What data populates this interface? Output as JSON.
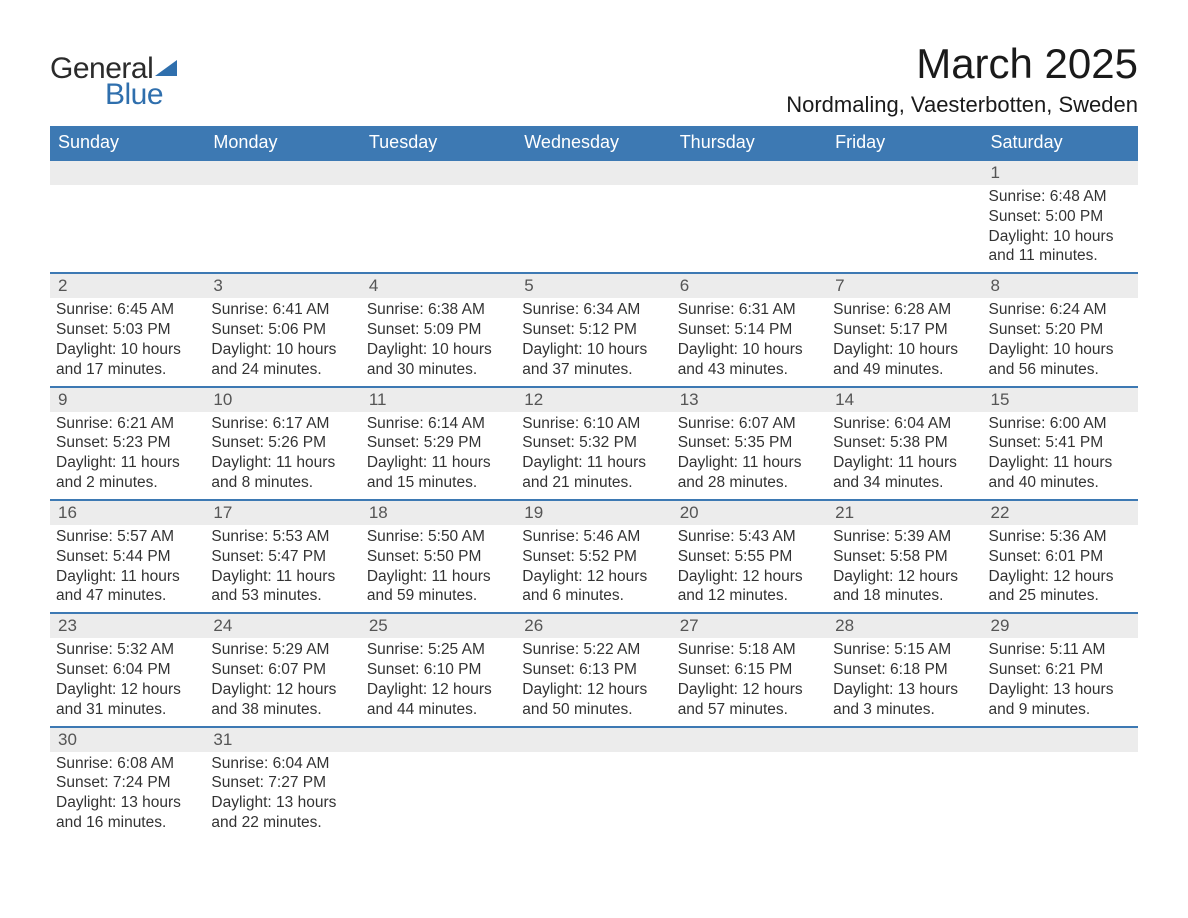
{
  "logo": {
    "word1": "General",
    "word2": "Blue"
  },
  "title": "March 2025",
  "location": "Nordmaling, Vaesterbotten, Sweden",
  "colors": {
    "header_bg": "#3d79b3",
    "header_text": "#ffffff",
    "daynum_bg": "#ececec",
    "row_border": "#3d79b3",
    "text": "#333333",
    "logo_dark": "#2b2b2b",
    "logo_blue": "#2f6fad",
    "page_bg": "#ffffff"
  },
  "day_names": [
    "Sunday",
    "Monday",
    "Tuesday",
    "Wednesday",
    "Thursday",
    "Friday",
    "Saturday"
  ],
  "weeks": [
    [
      null,
      null,
      null,
      null,
      null,
      null,
      {
        "n": "1",
        "sr": "Sunrise: 6:48 AM",
        "ss": "Sunset: 5:00 PM",
        "d1": "Daylight: 10 hours",
        "d2": "and 11 minutes."
      }
    ],
    [
      {
        "n": "2",
        "sr": "Sunrise: 6:45 AM",
        "ss": "Sunset: 5:03 PM",
        "d1": "Daylight: 10 hours",
        "d2": "and 17 minutes."
      },
      {
        "n": "3",
        "sr": "Sunrise: 6:41 AM",
        "ss": "Sunset: 5:06 PM",
        "d1": "Daylight: 10 hours",
        "d2": "and 24 minutes."
      },
      {
        "n": "4",
        "sr": "Sunrise: 6:38 AM",
        "ss": "Sunset: 5:09 PM",
        "d1": "Daylight: 10 hours",
        "d2": "and 30 minutes."
      },
      {
        "n": "5",
        "sr": "Sunrise: 6:34 AM",
        "ss": "Sunset: 5:12 PM",
        "d1": "Daylight: 10 hours",
        "d2": "and 37 minutes."
      },
      {
        "n": "6",
        "sr": "Sunrise: 6:31 AM",
        "ss": "Sunset: 5:14 PM",
        "d1": "Daylight: 10 hours",
        "d2": "and 43 minutes."
      },
      {
        "n": "7",
        "sr": "Sunrise: 6:28 AM",
        "ss": "Sunset: 5:17 PM",
        "d1": "Daylight: 10 hours",
        "d2": "and 49 minutes."
      },
      {
        "n": "8",
        "sr": "Sunrise: 6:24 AM",
        "ss": "Sunset: 5:20 PM",
        "d1": "Daylight: 10 hours",
        "d2": "and 56 minutes."
      }
    ],
    [
      {
        "n": "9",
        "sr": "Sunrise: 6:21 AM",
        "ss": "Sunset: 5:23 PM",
        "d1": "Daylight: 11 hours",
        "d2": "and 2 minutes."
      },
      {
        "n": "10",
        "sr": "Sunrise: 6:17 AM",
        "ss": "Sunset: 5:26 PM",
        "d1": "Daylight: 11 hours",
        "d2": "and 8 minutes."
      },
      {
        "n": "11",
        "sr": "Sunrise: 6:14 AM",
        "ss": "Sunset: 5:29 PM",
        "d1": "Daylight: 11 hours",
        "d2": "and 15 minutes."
      },
      {
        "n": "12",
        "sr": "Sunrise: 6:10 AM",
        "ss": "Sunset: 5:32 PM",
        "d1": "Daylight: 11 hours",
        "d2": "and 21 minutes."
      },
      {
        "n": "13",
        "sr": "Sunrise: 6:07 AM",
        "ss": "Sunset: 5:35 PM",
        "d1": "Daylight: 11 hours",
        "d2": "and 28 minutes."
      },
      {
        "n": "14",
        "sr": "Sunrise: 6:04 AM",
        "ss": "Sunset: 5:38 PM",
        "d1": "Daylight: 11 hours",
        "d2": "and 34 minutes."
      },
      {
        "n": "15",
        "sr": "Sunrise: 6:00 AM",
        "ss": "Sunset: 5:41 PM",
        "d1": "Daylight: 11 hours",
        "d2": "and 40 minutes."
      }
    ],
    [
      {
        "n": "16",
        "sr": "Sunrise: 5:57 AM",
        "ss": "Sunset: 5:44 PM",
        "d1": "Daylight: 11 hours",
        "d2": "and 47 minutes."
      },
      {
        "n": "17",
        "sr": "Sunrise: 5:53 AM",
        "ss": "Sunset: 5:47 PM",
        "d1": "Daylight: 11 hours",
        "d2": "and 53 minutes."
      },
      {
        "n": "18",
        "sr": "Sunrise: 5:50 AM",
        "ss": "Sunset: 5:50 PM",
        "d1": "Daylight: 11 hours",
        "d2": "and 59 minutes."
      },
      {
        "n": "19",
        "sr": "Sunrise: 5:46 AM",
        "ss": "Sunset: 5:52 PM",
        "d1": "Daylight: 12 hours",
        "d2": "and 6 minutes."
      },
      {
        "n": "20",
        "sr": "Sunrise: 5:43 AM",
        "ss": "Sunset: 5:55 PM",
        "d1": "Daylight: 12 hours",
        "d2": "and 12 minutes."
      },
      {
        "n": "21",
        "sr": "Sunrise: 5:39 AM",
        "ss": "Sunset: 5:58 PM",
        "d1": "Daylight: 12 hours",
        "d2": "and 18 minutes."
      },
      {
        "n": "22",
        "sr": "Sunrise: 5:36 AM",
        "ss": "Sunset: 6:01 PM",
        "d1": "Daylight: 12 hours",
        "d2": "and 25 minutes."
      }
    ],
    [
      {
        "n": "23",
        "sr": "Sunrise: 5:32 AM",
        "ss": "Sunset: 6:04 PM",
        "d1": "Daylight: 12 hours",
        "d2": "and 31 minutes."
      },
      {
        "n": "24",
        "sr": "Sunrise: 5:29 AM",
        "ss": "Sunset: 6:07 PM",
        "d1": "Daylight: 12 hours",
        "d2": "and 38 minutes."
      },
      {
        "n": "25",
        "sr": "Sunrise: 5:25 AM",
        "ss": "Sunset: 6:10 PM",
        "d1": "Daylight: 12 hours",
        "d2": "and 44 minutes."
      },
      {
        "n": "26",
        "sr": "Sunrise: 5:22 AM",
        "ss": "Sunset: 6:13 PM",
        "d1": "Daylight: 12 hours",
        "d2": "and 50 minutes."
      },
      {
        "n": "27",
        "sr": "Sunrise: 5:18 AM",
        "ss": "Sunset: 6:15 PM",
        "d1": "Daylight: 12 hours",
        "d2": "and 57 minutes."
      },
      {
        "n": "28",
        "sr": "Sunrise: 5:15 AM",
        "ss": "Sunset: 6:18 PM",
        "d1": "Daylight: 13 hours",
        "d2": "and 3 minutes."
      },
      {
        "n": "29",
        "sr": "Sunrise: 5:11 AM",
        "ss": "Sunset: 6:21 PM",
        "d1": "Daylight: 13 hours",
        "d2": "and 9 minutes."
      }
    ],
    [
      {
        "n": "30",
        "sr": "Sunrise: 6:08 AM",
        "ss": "Sunset: 7:24 PM",
        "d1": "Daylight: 13 hours",
        "d2": "and 16 minutes."
      },
      {
        "n": "31",
        "sr": "Sunrise: 6:04 AM",
        "ss": "Sunset: 7:27 PM",
        "d1": "Daylight: 13 hours",
        "d2": "and 22 minutes."
      },
      null,
      null,
      null,
      null,
      null
    ]
  ]
}
